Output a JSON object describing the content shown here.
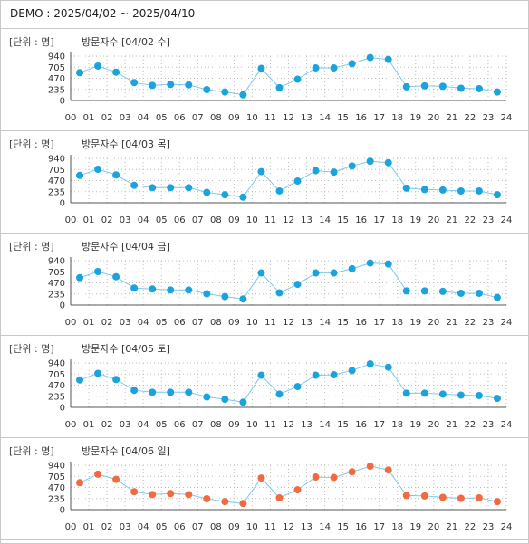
{
  "header": {
    "text": "DEMO : 2025/04/02 ~ 2025/04/10"
  },
  "unit_label": "[단위 : 명]",
  "colors": {
    "line": "#7fc8ea",
    "dot_default": "#1aa3dc",
    "dot_highlight": "#f26a3d",
    "grid": "#bdbdbd"
  },
  "chart_data": [
    {
      "type": "line",
      "title": "방문자수 [04/02 수]",
      "series_name": "방문자수",
      "date_label": "[04/02 수]",
      "x": [
        "00",
        "01",
        "02",
        "03",
        "04",
        "05",
        "06",
        "07",
        "08",
        "09",
        "10",
        "11",
        "12",
        "13",
        "14",
        "15",
        "16",
        "17",
        "18",
        "19",
        "20",
        "21",
        "22",
        "23"
      ],
      "y": [
        590,
        730,
        600,
        380,
        320,
        340,
        330,
        230,
        180,
        120,
        680,
        270,
        450,
        690,
        690,
        780,
        910,
        870,
        290,
        310,
        300,
        260,
        250,
        180
      ],
      "x_ticks": [
        "00",
        "01",
        "02",
        "03",
        "04",
        "05",
        "06",
        "07",
        "08",
        "09",
        "10",
        "11",
        "12",
        "13",
        "14",
        "15",
        "16",
        "17",
        "18",
        "19",
        "20",
        "21",
        "22",
        "23",
        "24"
      ],
      "y_ticks": [
        "0",
        "235",
        "470",
        "705",
        "940"
      ],
      "ylim": [
        0,
        940
      ],
      "grid": true
    },
    {
      "type": "line",
      "title": "방문자수 [04/03 목]",
      "series_name": "방문자수",
      "date_label": "[04/03 목]",
      "x": [
        "00",
        "01",
        "02",
        "03",
        "04",
        "05",
        "06",
        "07",
        "08",
        "09",
        "10",
        "11",
        "12",
        "13",
        "14",
        "15",
        "16",
        "17",
        "18",
        "19",
        "20",
        "21",
        "22",
        "23"
      ],
      "y": [
        580,
        710,
        590,
        370,
        320,
        320,
        320,
        220,
        170,
        120,
        660,
        250,
        460,
        680,
        650,
        780,
        880,
        850,
        310,
        280,
        270,
        250,
        250,
        170
      ],
      "x_ticks": [
        "00",
        "01",
        "02",
        "03",
        "04",
        "05",
        "06",
        "07",
        "08",
        "09",
        "10",
        "11",
        "12",
        "13",
        "14",
        "15",
        "16",
        "17",
        "18",
        "19",
        "20",
        "21",
        "22",
        "23",
        "24"
      ],
      "y_ticks": [
        "0",
        "235",
        "470",
        "705",
        "940"
      ],
      "ylim": [
        0,
        940
      ],
      "grid": true
    },
    {
      "type": "line",
      "title": "방문자수 [04/04 금]",
      "series_name": "방문자수",
      "date_label": "[04/04 금]",
      "x": [
        "00",
        "01",
        "02",
        "03",
        "04",
        "05",
        "06",
        "07",
        "08",
        "09",
        "10",
        "11",
        "12",
        "13",
        "14",
        "15",
        "16",
        "17",
        "18",
        "19",
        "20",
        "21",
        "22",
        "23"
      ],
      "y": [
        580,
        710,
        600,
        360,
        340,
        320,
        320,
        240,
        180,
        130,
        680,
        260,
        440,
        680,
        680,
        770,
        890,
        870,
        300,
        300,
        290,
        250,
        250,
        160
      ],
      "x_ticks": [
        "00",
        "01",
        "02",
        "03",
        "04",
        "05",
        "06",
        "07",
        "08",
        "09",
        "10",
        "11",
        "12",
        "13",
        "14",
        "15",
        "16",
        "17",
        "18",
        "19",
        "20",
        "21",
        "22",
        "23",
        "24"
      ],
      "y_ticks": [
        "0",
        "235",
        "470",
        "705",
        "940"
      ],
      "ylim": [
        0,
        940
      ],
      "grid": true
    },
    {
      "type": "line",
      "title": "방문자수 [04/05 토]",
      "series_name": "방문자수",
      "date_label": "[04/05 토]",
      "x": [
        "00",
        "01",
        "02",
        "03",
        "04",
        "05",
        "06",
        "07",
        "08",
        "09",
        "10",
        "11",
        "12",
        "13",
        "14",
        "15",
        "16",
        "17",
        "18",
        "19",
        "20",
        "21",
        "22",
        "23"
      ],
      "y": [
        580,
        720,
        590,
        360,
        320,
        320,
        320,
        220,
        170,
        110,
        680,
        280,
        440,
        680,
        690,
        780,
        920,
        850,
        300,
        300,
        280,
        260,
        250,
        190
      ],
      "x_ticks": [
        "00",
        "01",
        "02",
        "03",
        "04",
        "05",
        "06",
        "07",
        "08",
        "09",
        "10",
        "11",
        "12",
        "13",
        "14",
        "15",
        "16",
        "17",
        "18",
        "19",
        "20",
        "21",
        "22",
        "23",
        "24"
      ],
      "y_ticks": [
        "0",
        "235",
        "470",
        "705",
        "940"
      ],
      "ylim": [
        0,
        940
      ],
      "grid": true
    },
    {
      "type": "line",
      "title": "방문자수 [04/06 일]",
      "series_name": "방문자수",
      "date_label": "[04/06 일]",
      "highlight": true,
      "x": [
        "00",
        "01",
        "02",
        "03",
        "04",
        "05",
        "06",
        "07",
        "08",
        "09",
        "10",
        "11",
        "12",
        "13",
        "14",
        "15",
        "16",
        "17",
        "18",
        "19",
        "20",
        "21",
        "22",
        "23"
      ],
      "y": [
        570,
        750,
        640,
        380,
        320,
        340,
        320,
        230,
        170,
        130,
        670,
        250,
        420,
        690,
        680,
        800,
        920,
        840,
        300,
        290,
        260,
        240,
        250,
        170
      ],
      "x_ticks": [
        "00",
        "01",
        "02",
        "03",
        "04",
        "05",
        "06",
        "07",
        "08",
        "09",
        "10",
        "11",
        "12",
        "13",
        "14",
        "15",
        "16",
        "17",
        "18",
        "19",
        "20",
        "21",
        "22",
        "23",
        "24"
      ],
      "y_ticks": [
        "0",
        "235",
        "470",
        "705",
        "940"
      ],
      "ylim": [
        0,
        940
      ],
      "grid": true
    }
  ]
}
